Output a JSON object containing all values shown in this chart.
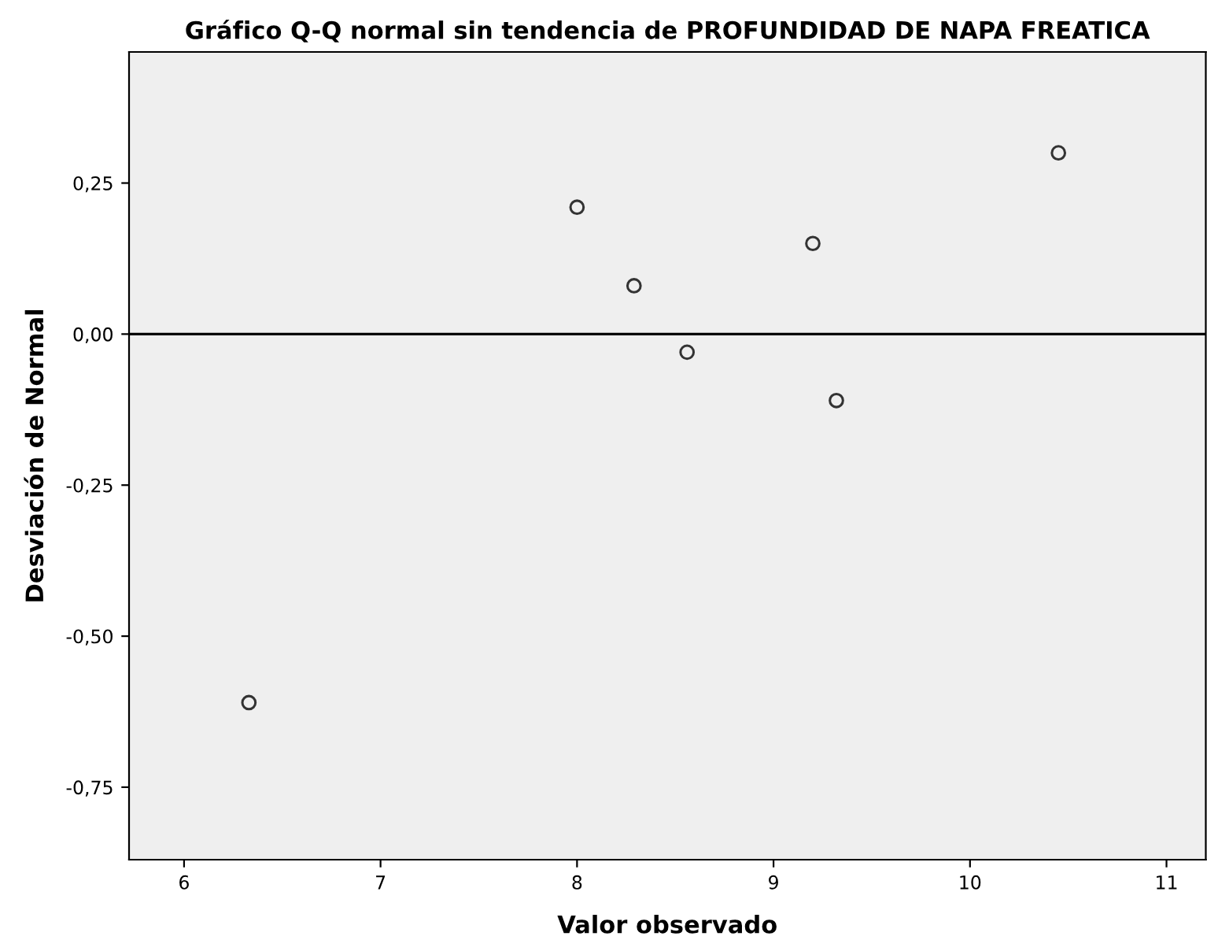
{
  "chart_data": {
    "type": "scatter",
    "title": "Gráfico Q-Q normal sin tendencia de PROFUNDIDAD DE NAPA FREATICA",
    "xlabel": "Valor observado",
    "ylabel": "Desviación de Normal",
    "x": [
      6.33,
      8.0,
      8.29,
      8.56,
      9.2,
      9.32,
      10.45
    ],
    "values": [
      -0.61,
      0.21,
      0.08,
      -0.03,
      0.15,
      -0.11,
      0.3
    ],
    "color": "#333333",
    "marker": "circle",
    "xlim": [
      5.72,
      11.2
    ],
    "xticks": [
      6,
      7,
      8,
      9,
      10,
      11
    ],
    "ylim": [
      -0.87,
      0.467
    ],
    "yticks": [
      {
        "value": -0.75,
        "label": "-0,75"
      },
      {
        "value": -0.5,
        "label": "-0,50"
      },
      {
        "value": -0.25,
        "label": "-0,25"
      },
      {
        "value": 0,
        "label": "0,00"
      },
      {
        "value": 0.25,
        "label": "0,25"
      }
    ],
    "ref_lines": [
      {
        "axis": "y",
        "value": 0,
        "color": "#000000"
      }
    ],
    "grid": false
  }
}
